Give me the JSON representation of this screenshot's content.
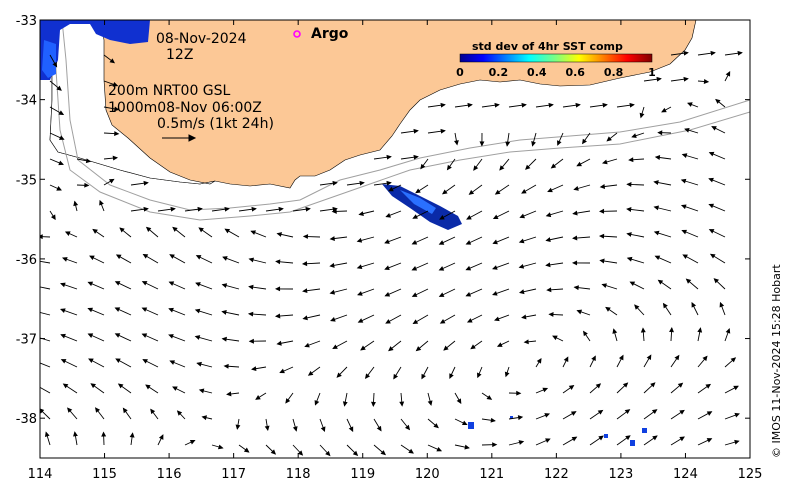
{
  "map": {
    "lon_range": [
      114,
      125
    ],
    "lat_range": [
      -38.5,
      -33
    ],
    "x_ticks": [
      "114",
      "115",
      "116",
      "117",
      "118",
      "119",
      "120",
      "121",
      "122",
      "123",
      "124",
      "125"
    ],
    "y_ticks": [
      "-33",
      "-34",
      "-35",
      "-36",
      "-37",
      "-38"
    ],
    "colors": {
      "land": "#fcc896",
      "arrow": "#000000",
      "isobath": "#a0a0a0",
      "argo": "#ff00ff"
    }
  },
  "annotations": {
    "date": "08-Nov-2024",
    "time": "12Z",
    "line1": "200m  NRT00 GSL",
    "line2": "1000m08-Nov 06:00Z",
    "scale": "0.5m/s (1kt 24h)",
    "argo": "Argo"
  },
  "colorbar": {
    "title": "std dev of 4hr SST comp",
    "tick_labels": [
      "0",
      "0.2",
      "0.4",
      "0.6",
      "0.8",
      "1"
    ],
    "range": [
      0,
      1
    ]
  },
  "copyright": "© IMOS 11-Nov-2024 15:28 Hobart"
}
